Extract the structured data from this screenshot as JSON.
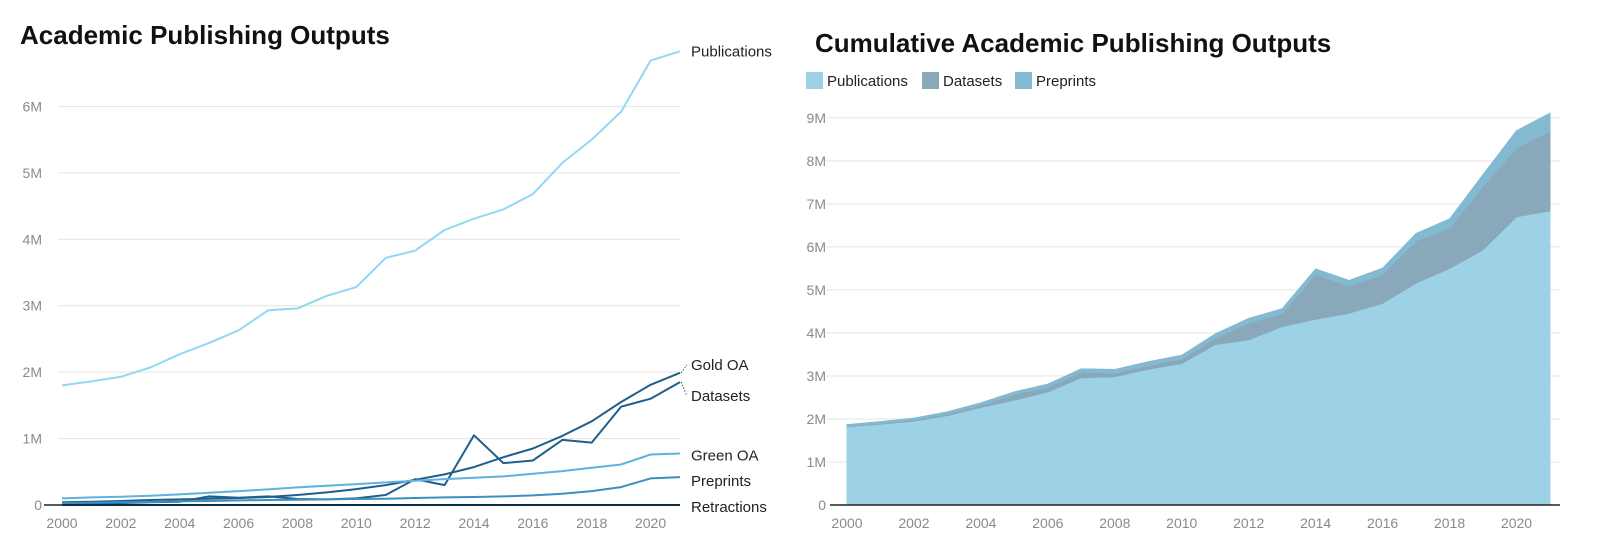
{
  "chart_data": [
    {
      "type": "line",
      "title": "Academic Publishing Outputs",
      "xlabel": "",
      "ylabel": "",
      "xlim": [
        2000,
        2021
      ],
      "ylim": [
        0,
        7000000
      ],
      "x_ticks": [
        2000,
        2002,
        2004,
        2006,
        2008,
        2010,
        2012,
        2014,
        2016,
        2018,
        2020
      ],
      "y_ticks": [
        0,
        1000000,
        2000000,
        3000000,
        4000000,
        5000000,
        6000000
      ],
      "y_tick_labels": [
        "0",
        "1M",
        "2M",
        "3M",
        "4M",
        "5M",
        "6M"
      ],
      "grid": "horizontal",
      "legend": "direct labels at line ends",
      "x": [
        2000,
        2001,
        2002,
        2003,
        2004,
        2005,
        2006,
        2007,
        2008,
        2009,
        2010,
        2011,
        2012,
        2013,
        2014,
        2015,
        2016,
        2017,
        2018,
        2019,
        2020,
        2021
      ],
      "series": [
        {
          "name": "Publications",
          "color": "#8fd9f2",
          "values": [
            1800000,
            1860000,
            1930000,
            2070000,
            2270000,
            2440000,
            2630000,
            2930000,
            2960000,
            3150000,
            3280000,
            3720000,
            3830000,
            4140000,
            4310000,
            4450000,
            4680000,
            5150000,
            5500000,
            5920000,
            6690000,
            6830000
          ]
        },
        {
          "name": "Gold OA",
          "color": "#1f5f8b",
          "values": [
            40000,
            50000,
            60000,
            75000,
            85000,
            95000,
            105000,
            120000,
            150000,
            190000,
            240000,
            300000,
            380000,
            460000,
            570000,
            720000,
            850000,
            1040000,
            1260000,
            1550000,
            1810000,
            1990000
          ]
        },
        {
          "name": "Datasets",
          "color": "#1f5f8b",
          "values": [
            20000,
            25000,
            30000,
            40000,
            50000,
            130000,
            110000,
            130000,
            90000,
            85000,
            100000,
            150000,
            390000,
            300000,
            1050000,
            630000,
            670000,
            980000,
            940000,
            1480000,
            1600000,
            1850000
          ]
        },
        {
          "name": "Green OA",
          "color": "#5fb2de",
          "values": [
            100000,
            115000,
            125000,
            140000,
            160000,
            185000,
            210000,
            235000,
            265000,
            290000,
            315000,
            340000,
            365000,
            390000,
            410000,
            430000,
            470000,
            510000,
            560000,
            610000,
            760000,
            775000
          ]
        },
        {
          "name": "Preprints",
          "color": "#3d8fc0",
          "values": [
            30000,
            35000,
            40000,
            45000,
            55000,
            60000,
            70000,
            75000,
            80000,
            85000,
            90000,
            95000,
            105000,
            115000,
            120000,
            130000,
            145000,
            170000,
            210000,
            270000,
            400000,
            420000
          ]
        },
        {
          "name": "Retractions",
          "color": "#0d2d45",
          "values": [
            0,
            0,
            0,
            0,
            0,
            0,
            0,
            0,
            0,
            0,
            0,
            0,
            0,
            0,
            0,
            0,
            0,
            0,
            0,
            0,
            0,
            0
          ]
        }
      ]
    },
    {
      "type": "area",
      "stacked": true,
      "title": "Cumulative Academic Publishing Outputs",
      "xlabel": "",
      "ylabel": "",
      "xlim": [
        2000,
        2021
      ],
      "ylim": [
        0,
        9300000
      ],
      "x_ticks": [
        2000,
        2002,
        2004,
        2006,
        2008,
        2010,
        2012,
        2014,
        2016,
        2018,
        2020
      ],
      "y_ticks": [
        0,
        1000000,
        2000000,
        3000000,
        4000000,
        5000000,
        6000000,
        7000000,
        8000000,
        9000000
      ],
      "y_tick_labels": [
        "0",
        "1M",
        "2M",
        "3M",
        "4M",
        "5M",
        "6M",
        "7M",
        "8M",
        "9M"
      ],
      "grid": "horizontal",
      "legend": "top-left",
      "x": [
        2000,
        2001,
        2002,
        2003,
        2004,
        2005,
        2006,
        2007,
        2008,
        2009,
        2010,
        2011,
        2012,
        2013,
        2014,
        2015,
        2016,
        2017,
        2018,
        2019,
        2020,
        2021
      ],
      "series": [
        {
          "name": "Publications",
          "color": "#9dd2e6",
          "values": [
            1820000,
            1880000,
            1950000,
            2080000,
            2270000,
            2440000,
            2630000,
            2960000,
            2980000,
            3160000,
            3290000,
            3730000,
            3840000,
            4150000,
            4320000,
            4460000,
            4690000,
            5160000,
            5500000,
            5930000,
            6700000,
            6840000
          ]
        },
        {
          "name": "Datasets",
          "color": "#89a9bb",
          "values": [
            20000,
            25000,
            30000,
            40000,
            50000,
            130000,
            110000,
            130000,
            90000,
            85000,
            100000,
            150000,
            390000,
            300000,
            1050000,
            630000,
            670000,
            980000,
            940000,
            1480000,
            1600000,
            1850000
          ]
        },
        {
          "name": "Preprints",
          "color": "#83b9d1",
          "values": [
            30000,
            35000,
            40000,
            45000,
            55000,
            60000,
            70000,
            75000,
            80000,
            85000,
            90000,
            95000,
            105000,
            115000,
            120000,
            130000,
            145000,
            170000,
            210000,
            270000,
            400000,
            420000
          ]
        }
      ]
    }
  ]
}
